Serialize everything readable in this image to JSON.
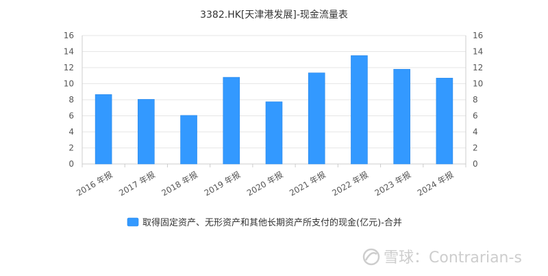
{
  "chart_data": {
    "type": "bar",
    "title": "3382.HK[天津港发展]-现金流量表",
    "categories": [
      "2016 年报",
      "2017 年报",
      "2018 年报",
      "2019 年报",
      "2020 年报",
      "2021 年报",
      "2022 年报",
      "2023 年报",
      "2024 年报"
    ],
    "series": [
      {
        "name": "取得固定资产、无形资产和其他长期资产所支付的现金(亿元)-合并",
        "values": [
          8.65,
          8.05,
          6.05,
          10.8,
          7.75,
          11.35,
          13.5,
          11.8,
          10.7
        ],
        "color": "#3399ff"
      }
    ],
    "ylim": [
      0,
      16
    ],
    "yticks": [
      0,
      2,
      4,
      6,
      8,
      10,
      12,
      14,
      16
    ],
    "y_axis_left": true,
    "y_axis_right": true,
    "grid": true,
    "legend_position": "bottom-center"
  },
  "watermark": {
    "text": "雪球：Contrarian-s",
    "icon": "snowball-logo-icon"
  },
  "colors": {
    "bar": "#3399ff",
    "bar_edge": "#2b88e6",
    "grid": "#e6e6e6",
    "axis": "#cccccc"
  }
}
